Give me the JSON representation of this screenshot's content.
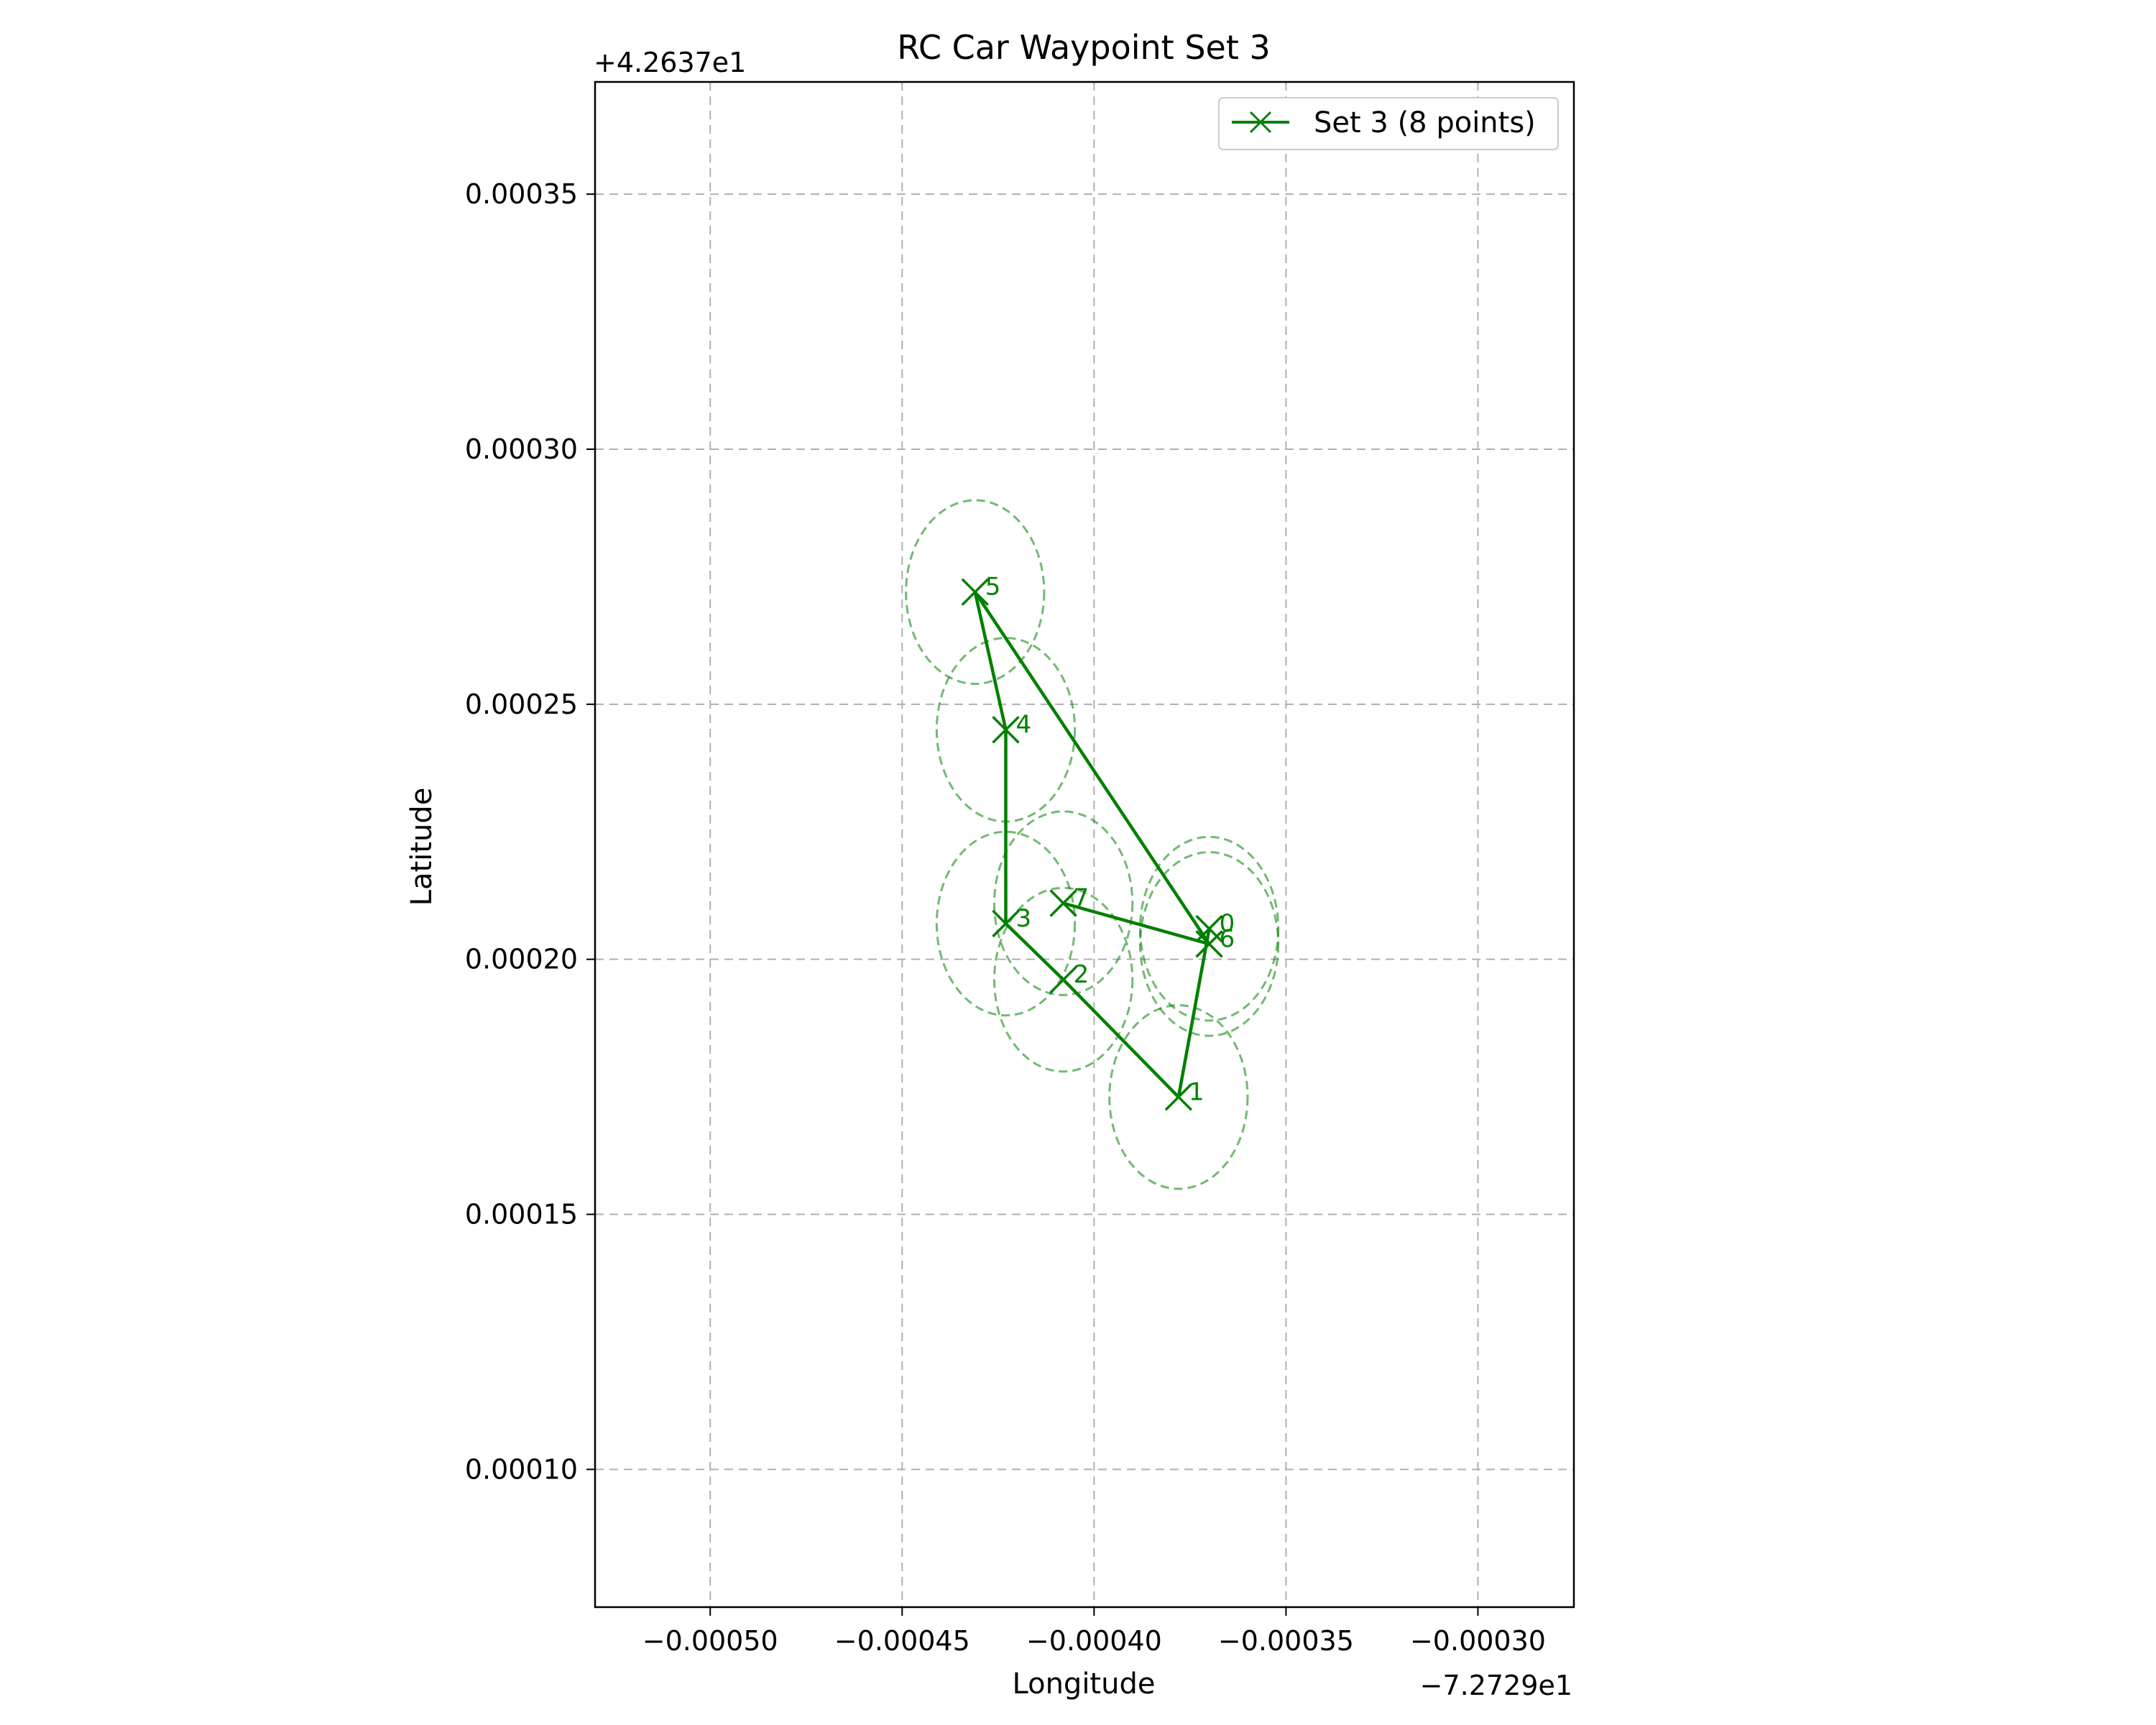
{
  "chart_data": {
    "type": "scatter",
    "title": "RC Car Waypoint Set 3",
    "xlabel": "Longitude",
    "ylabel": "Latitude",
    "x_offset_label": "−7.2729e1",
    "y_offset_label": "+4.2637e1",
    "xlim": [
      -0.00053,
      -0.000275
    ],
    "ylim": [
      7.3e-05,
      0.000372
    ],
    "xticks": [
      -0.0005,
      -0.00045,
      -0.0004,
      -0.00035,
      -0.0003
    ],
    "xtick_labels": [
      "−0.00050",
      "−0.00045",
      "−0.00040",
      "−0.00035",
      "−0.00030"
    ],
    "yticks": [
      0.0001,
      0.00015,
      0.0002,
      0.00025,
      0.0003,
      0.00035
    ],
    "ytick_labels": [
      "0.00010",
      "0.00015",
      "0.00020",
      "0.00025",
      "0.00030",
      "0.00035"
    ],
    "grid": true,
    "legend_position": "top-right",
    "color": "#008000",
    "series": [
      {
        "name": "Set 3 (8 points)",
        "marker": "x",
        "points": [
          {
            "label": "0",
            "x": -0.00037,
            "y": 0.000206
          },
          {
            "label": "1",
            "x": -0.000378,
            "y": 0.000173
          },
          {
            "label": "2",
            "x": -0.000408,
            "y": 0.000196
          },
          {
            "label": "3",
            "x": -0.000423,
            "y": 0.000207
          },
          {
            "label": "4",
            "x": -0.000423,
            "y": 0.000245
          },
          {
            "label": "5",
            "x": -0.000431,
            "y": 0.000272
          },
          {
            "label": "6",
            "x": -0.00037,
            "y": 0.000203
          },
          {
            "label": "7",
            "x": -0.000408,
            "y": 0.000211
          }
        ]
      }
    ],
    "tolerance_circle_radius": 1.8e-05
  }
}
